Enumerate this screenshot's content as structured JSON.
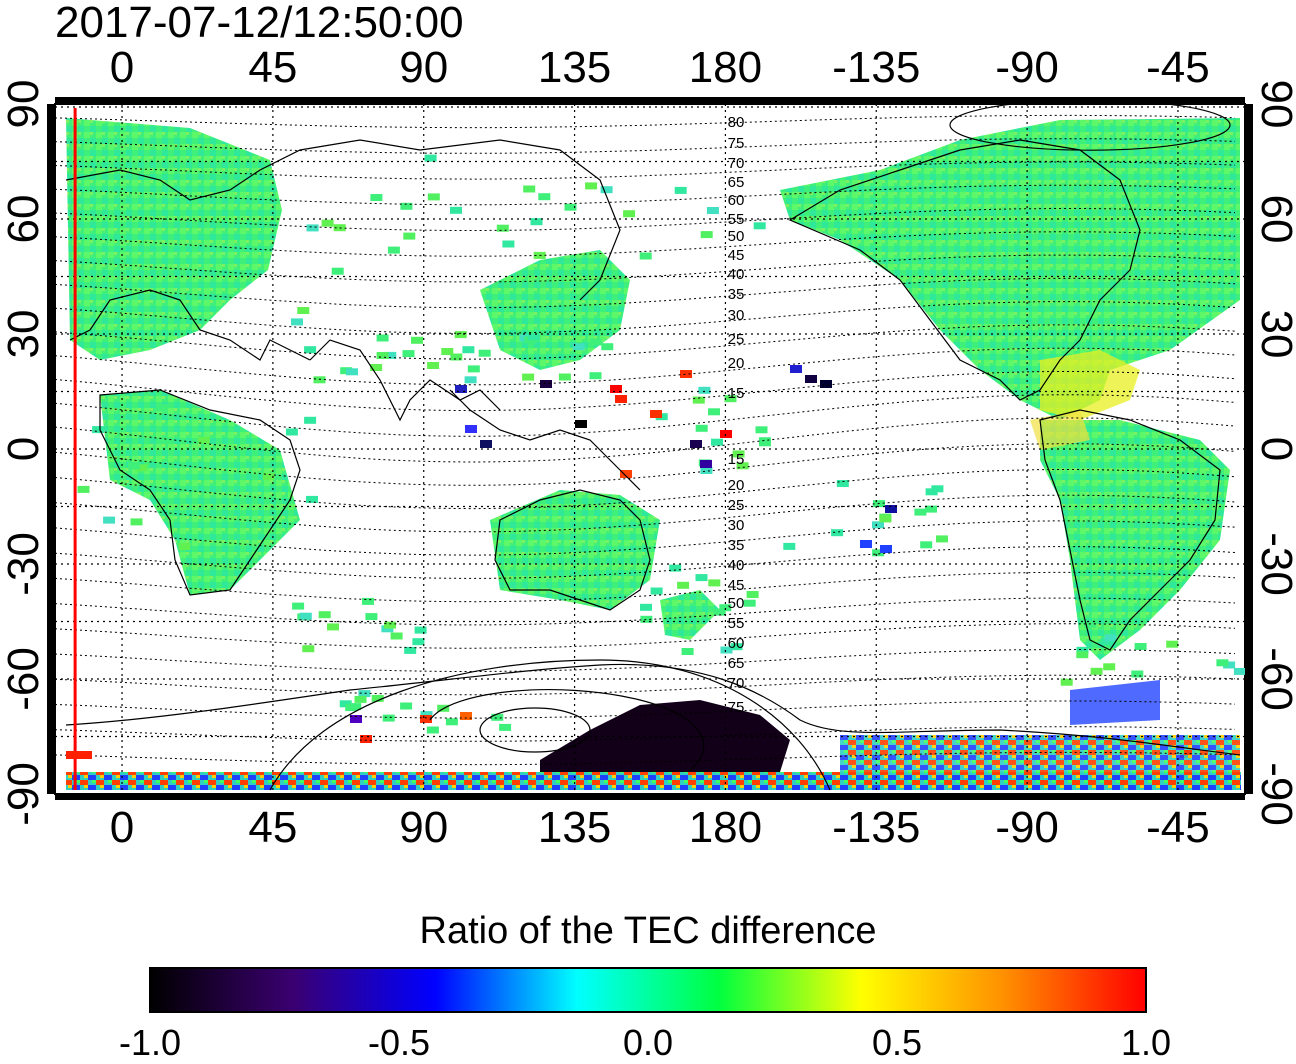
{
  "timestamp": "2017-07-12/12:50:00",
  "map": {
    "projection": "equirectangular",
    "central_longitude": 157.5,
    "lon_range": [
      -20,
      335
    ],
    "lat_range": [
      -90,
      90
    ],
    "grid": "dotted",
    "x_tick_labels": [
      "0",
      "45",
      "90",
      "135",
      "180",
      "-135",
      "-90",
      "-45"
    ],
    "y_tick_labels": [
      "90",
      "60",
      "30",
      "0",
      "-30",
      "-60",
      "-90"
    ],
    "contour_labels": [
      "80",
      "75",
      "70",
      "65",
      "60",
      "55",
      "50",
      "45",
      "40",
      "35",
      "30",
      "25",
      "20",
      "15",
      "15",
      "20",
      "25",
      "30",
      "35",
      "40",
      "45",
      "50",
      "55",
      "60",
      "65",
      "70",
      "75"
    ],
    "terminator_marker": {
      "longitude": -14,
      "color": "#ff0000"
    }
  },
  "colorbar": {
    "title": "Ratio of the TEC difference",
    "ticks": [
      "-1.0",
      "-0.5",
      "0.0",
      "0.5",
      "1.0"
    ],
    "range": [
      -1.0,
      1.0
    ],
    "colors": [
      "#000000",
      "#3a0070",
      "#0000ff",
      "#00ffff",
      "#00ff40",
      "#ffff00",
      "#ff9000",
      "#ff0000"
    ]
  },
  "colors": {
    "dominant": "#3ef07a",
    "positive": "#ffee00",
    "negative": "#1a0033"
  }
}
